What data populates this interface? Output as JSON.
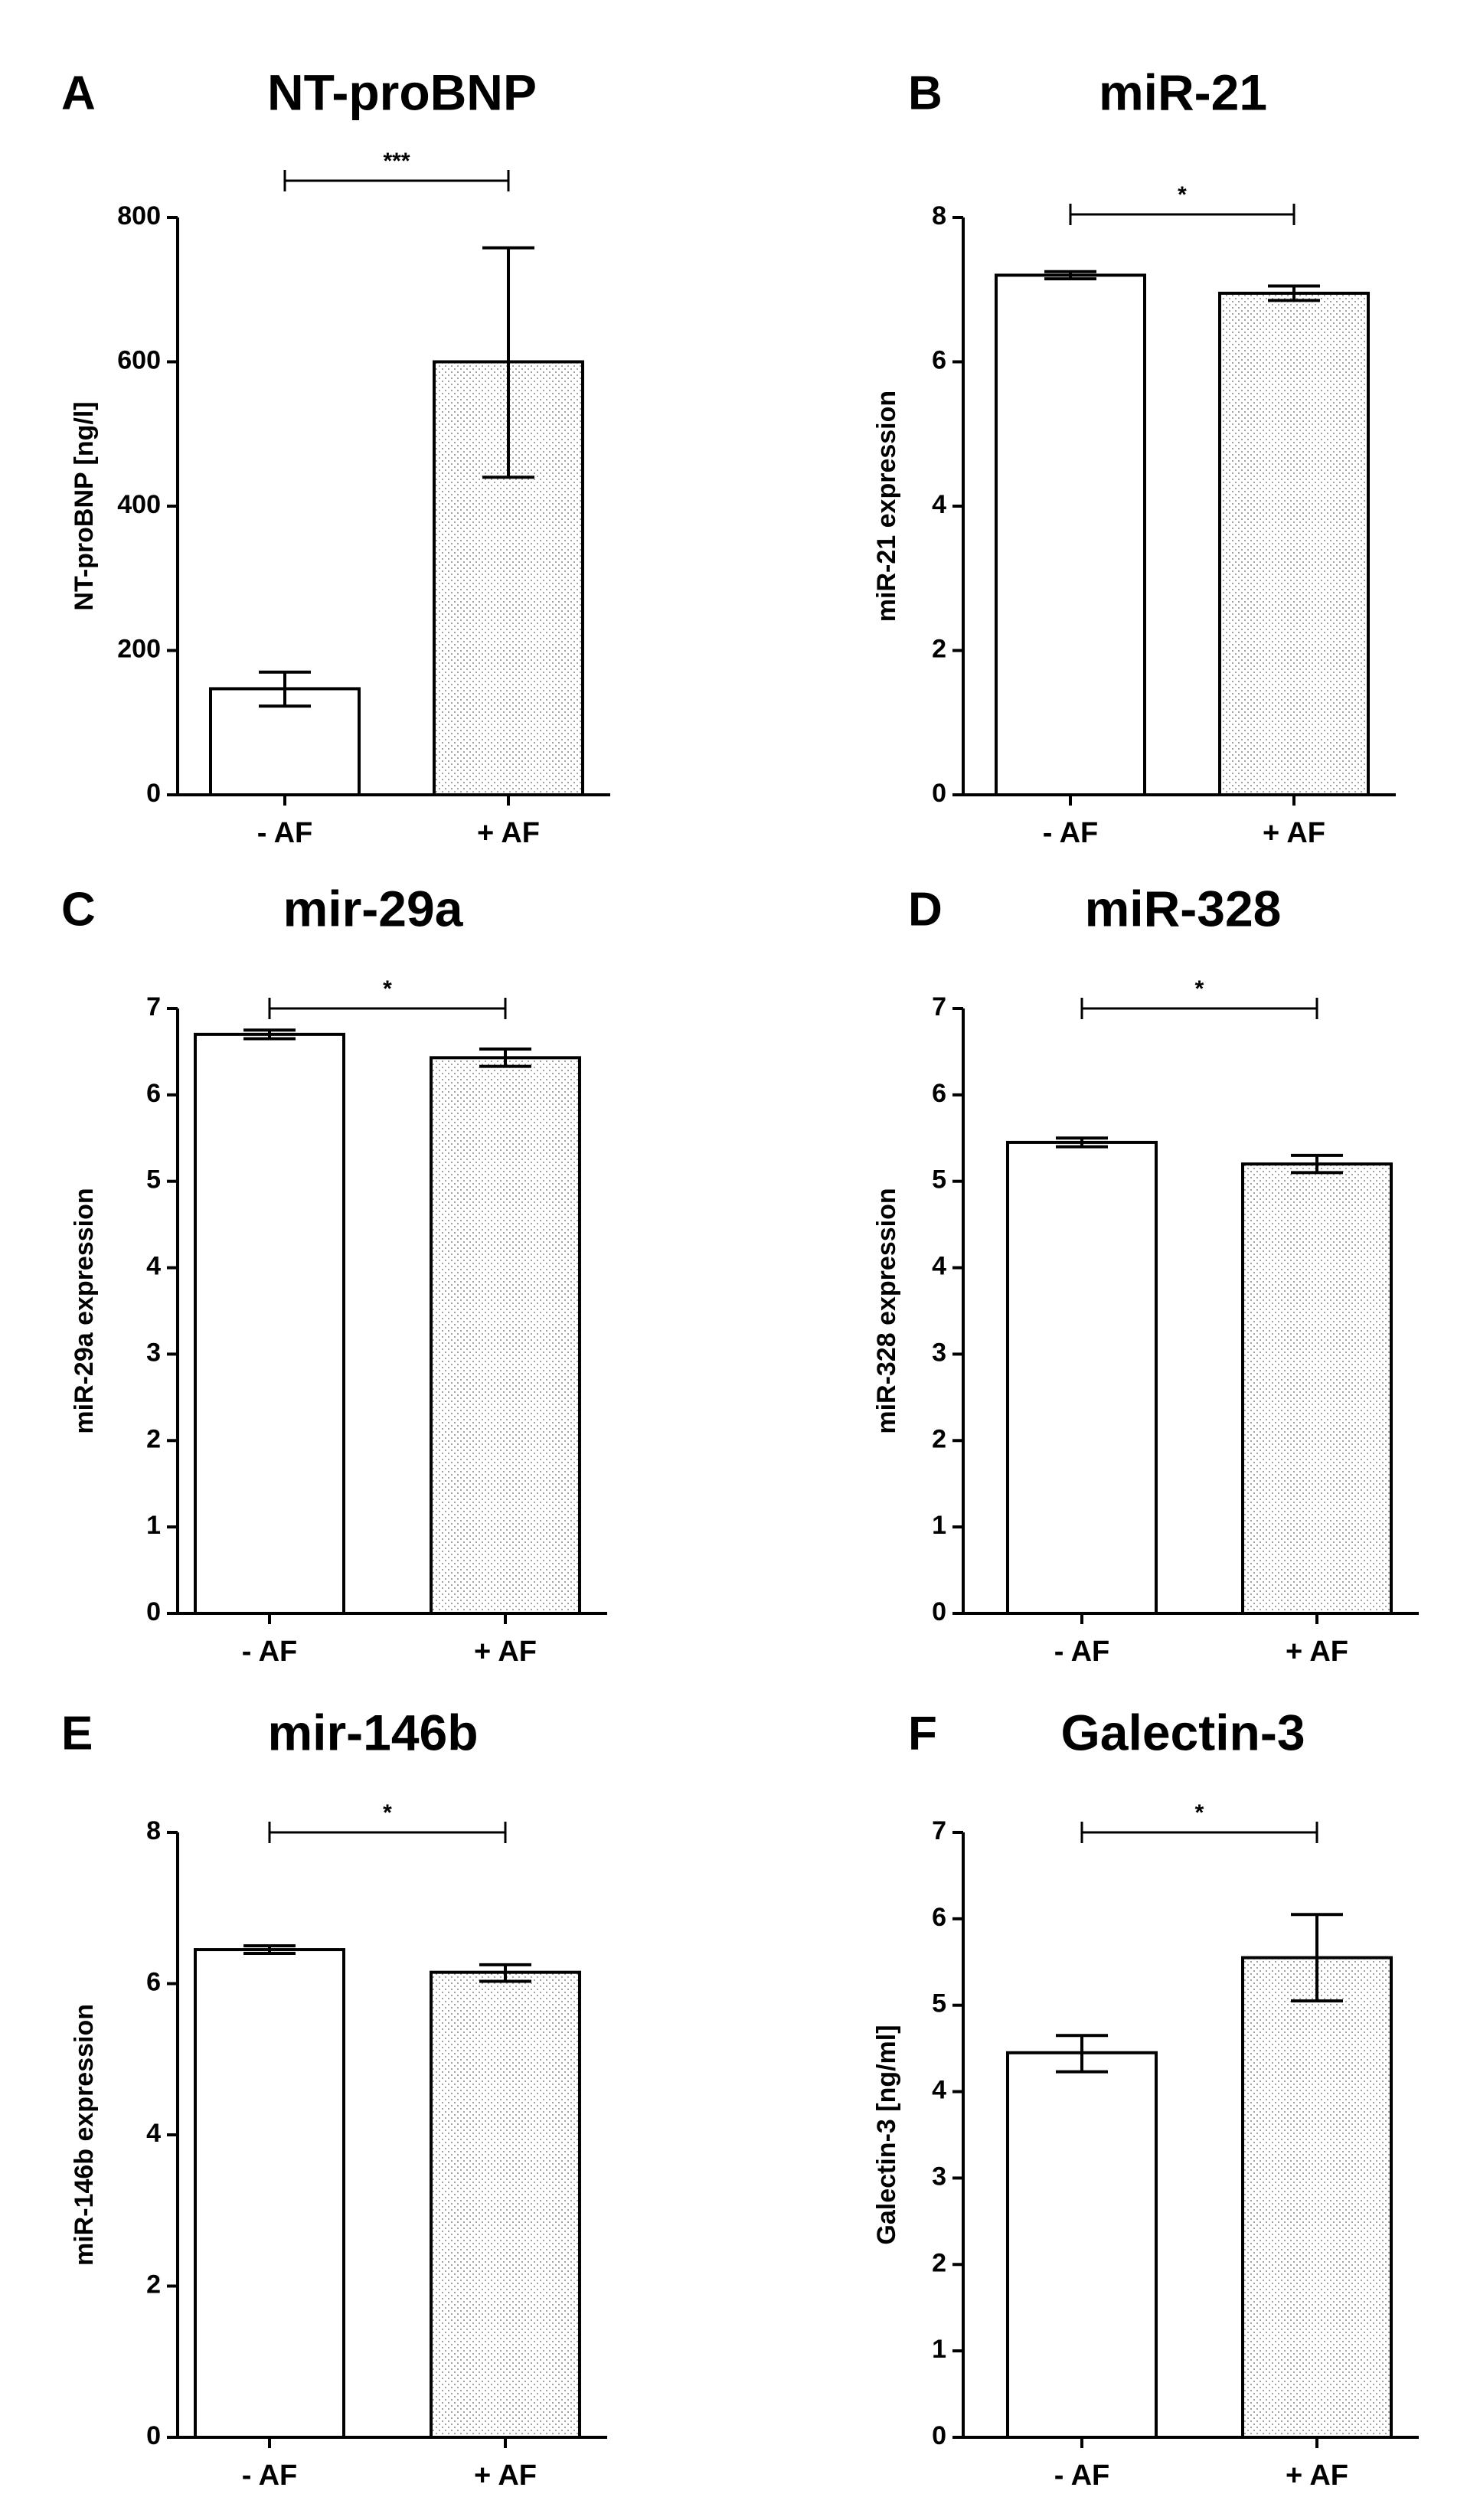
{
  "colors": {
    "ink": "#000000",
    "bar_plain": "#ffffff",
    "bar_dotted_bg": "#ffffff",
    "dot": "#8a8a8a"
  },
  "chart_data": [
    {
      "type": "bar",
      "panel": "A",
      "title": "NT-proBNP",
      "ylabel": "NT-proBNP [ng/l]",
      "categories": [
        "- AF",
        "+ AF"
      ],
      "values": [
        147,
        600
      ],
      "err_low": [
        123,
        440
      ],
      "err_high": [
        170,
        758
      ],
      "ylim": [
        0,
        800
      ],
      "yticks": [
        "0",
        "200",
        "400",
        "600",
        "800"
      ],
      "significance": "***"
    },
    {
      "type": "bar",
      "panel": "B",
      "title": "miR-21",
      "ylabel": "miR-21 expression",
      "categories": [
        "- AF",
        "+ AF"
      ],
      "values": [
        7.2,
        6.95
      ],
      "err_low": [
        7.15,
        6.85
      ],
      "err_high": [
        7.25,
        7.05
      ],
      "ylim": [
        0,
        8
      ],
      "yticks": [
        "0",
        "2",
        "4",
        "6",
        "8"
      ],
      "significance": "*"
    },
    {
      "type": "bar",
      "panel": "C",
      "title": "mir-29a",
      "ylabel": "miR-29a expression",
      "categories": [
        "- AF",
        "+ AF"
      ],
      "values": [
        6.7,
        6.43
      ],
      "err_low": [
        6.65,
        6.33
      ],
      "err_high": [
        6.75,
        6.53
      ],
      "ylim": [
        0,
        7
      ],
      "yticks": [
        "0",
        "1",
        "2",
        "3",
        "4",
        "5",
        "6",
        "7"
      ],
      "significance": "*"
    },
    {
      "type": "bar",
      "panel": "D",
      "title": "miR-328",
      "ylabel": "miR-328 expression",
      "categories": [
        "- AF",
        "+ AF"
      ],
      "values": [
        5.45,
        5.2
      ],
      "err_low": [
        5.4,
        5.1
      ],
      "err_high": [
        5.5,
        5.3
      ],
      "ylim": [
        0,
        7
      ],
      "yticks": [
        "0",
        "1",
        "2",
        "3",
        "4",
        "5",
        "6",
        "7"
      ],
      "significance": "*"
    },
    {
      "type": "bar",
      "panel": "E",
      "title": "mir-146b",
      "ylabel": "miR-146b expression",
      "categories": [
        "- AF",
        "+ AF"
      ],
      "values": [
        6.45,
        6.15
      ],
      "err_low": [
        6.4,
        6.03
      ],
      "err_high": [
        6.5,
        6.25
      ],
      "ylim": [
        0,
        8
      ],
      "yticks": [
        "0",
        "2",
        "4",
        "6",
        "8"
      ],
      "significance": "*"
    },
    {
      "type": "bar",
      "panel": "F",
      "title": "Galectin-3",
      "ylabel": "Galectin-3 [ng/ml]",
      "categories": [
        "- AF",
        "+ AF"
      ],
      "values": [
        4.45,
        5.55
      ],
      "err_low": [
        4.23,
        5.05
      ],
      "err_high": [
        4.65,
        6.05
      ],
      "ylim": [
        0,
        7
      ],
      "yticks": [
        "0",
        "1",
        "2",
        "3",
        "4",
        "5",
        "6",
        "7"
      ],
      "significance": "*"
    }
  ]
}
